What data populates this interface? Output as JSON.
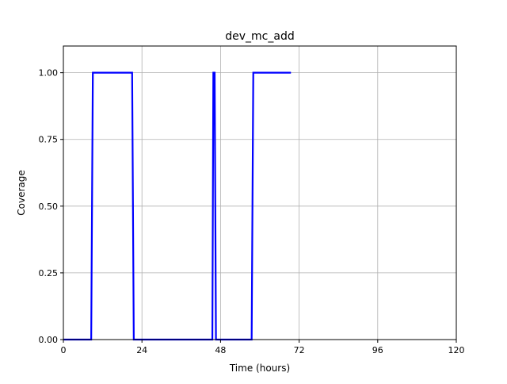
{
  "chart_data": {
    "type": "line",
    "title": "dev_mc_add",
    "xlabel": "Time (hours)",
    "ylabel": "Coverage",
    "xlim": [
      0,
      120
    ],
    "ylim": [
      0,
      1.1
    ],
    "xticks": [
      0,
      24,
      48,
      72,
      96,
      120
    ],
    "yticks": [
      0.0,
      0.25,
      0.5,
      0.75,
      1.0
    ],
    "xtick_labels": [
      "0",
      "24",
      "48",
      "72",
      "96",
      "120"
    ],
    "ytick_labels": [
      "0.00",
      "0.25",
      "0.50",
      "0.75",
      "1.00"
    ],
    "grid": true,
    "legend": null,
    "series": [
      {
        "color": "#0000ff",
        "x": [
          0,
          8.5,
          9,
          21,
          21.5,
          45.5,
          45.8,
          46.2,
          46.6,
          57.5,
          58,
          69.5
        ],
        "y": [
          0,
          0,
          1,
          1,
          0,
          0,
          1,
          1,
          0,
          0,
          1,
          1
        ]
      }
    ]
  }
}
